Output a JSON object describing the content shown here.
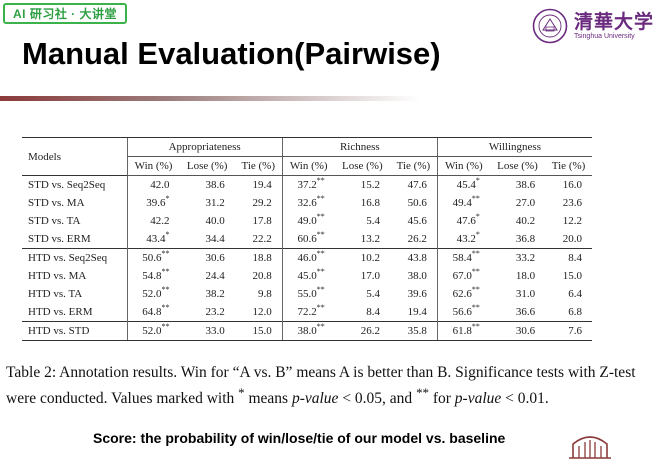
{
  "badge": "AI 研习社 · 大讲堂",
  "logo": {
    "cn": "清華大学",
    "en": "Tsinghua University"
  },
  "title": "Manual Evaluation(Pairwise)",
  "table": {
    "models_header": "Models",
    "groups": [
      "Appropriateness",
      "Richness",
      "Willingness"
    ],
    "subheaders": [
      "Win (%)",
      "Lose (%)",
      "Tie (%)"
    ],
    "blocks": [
      [
        {
          "model": "STD vs. Seq2Seq",
          "v": [
            "42.0",
            "38.6",
            "19.4",
            "37.2",
            "15.2",
            "47.6",
            "45.4",
            "38.6",
            "16.0"
          ],
          "s": [
            "",
            "",
            "",
            "**",
            "",
            "",
            "*",
            "",
            ""
          ]
        },
        {
          "model": "STD vs. MA",
          "v": [
            "39.6",
            "31.2",
            "29.2",
            "32.6",
            "16.8",
            "50.6",
            "49.4",
            "27.0",
            "23.6"
          ],
          "s": [
            "*",
            "",
            "",
            "**",
            "",
            "",
            "**",
            "",
            ""
          ]
        },
        {
          "model": "STD vs. TA",
          "v": [
            "42.2",
            "40.0",
            "17.8",
            "49.0",
            "5.4",
            "45.6",
            "47.6",
            "40.2",
            "12.2"
          ],
          "s": [
            "",
            "",
            "",
            "**",
            "",
            "",
            "*",
            "",
            ""
          ]
        },
        {
          "model": "STD vs. ERM",
          "v": [
            "43.4",
            "34.4",
            "22.2",
            "60.6",
            "13.2",
            "26.2",
            "43.2",
            "36.8",
            "20.0"
          ],
          "s": [
            "*",
            "",
            "",
            "**",
            "",
            "",
            "*",
            "",
            ""
          ]
        }
      ],
      [
        {
          "model": "HTD vs. Seq2Seq",
          "v": [
            "50.6",
            "30.6",
            "18.8",
            "46.0",
            "10.2",
            "43.8",
            "58.4",
            "33.2",
            "8.4"
          ],
          "s": [
            "**",
            "",
            "",
            "**",
            "",
            "",
            "**",
            "",
            ""
          ]
        },
        {
          "model": "HTD vs. MA",
          "v": [
            "54.8",
            "24.4",
            "20.8",
            "45.0",
            "17.0",
            "38.0",
            "67.0",
            "18.0",
            "15.0"
          ],
          "s": [
            "**",
            "",
            "",
            "**",
            "",
            "",
            "**",
            "",
            ""
          ]
        },
        {
          "model": "HTD vs. TA",
          "v": [
            "52.0",
            "38.2",
            "9.8",
            "55.0",
            "5.4",
            "39.6",
            "62.6",
            "31.0",
            "6.4"
          ],
          "s": [
            "**",
            "",
            "",
            "**",
            "",
            "",
            "**",
            "",
            ""
          ]
        },
        {
          "model": "HTD vs. ERM",
          "v": [
            "64.8",
            "23.2",
            "12.0",
            "72.2",
            "8.4",
            "19.4",
            "56.6",
            "36.6",
            "6.8"
          ],
          "s": [
            "**",
            "",
            "",
            "**",
            "",
            "",
            "**",
            "",
            ""
          ]
        }
      ],
      [
        {
          "model": "HTD vs. STD",
          "v": [
            "52.0",
            "33.0",
            "15.0",
            "38.0",
            "26.2",
            "35.8",
            "61.8",
            "30.6",
            "7.6"
          ],
          "s": [
            "**",
            "",
            "",
            "**",
            "",
            "",
            "**",
            "",
            ""
          ]
        }
      ]
    ]
  },
  "caption": {
    "p1": "Table 2: Annotation results. Win for “A vs. B” means A is better than B. Significance tests with Z-test were conducted. Values marked with ",
    "star1": "*",
    "p2": " means ",
    "pv": "p-value",
    "p3": " < 0.05, and ",
    "star2": "**",
    "p4": " for ",
    "p5": " < 0.01."
  },
  "note": "Score: the probability of win/lose/tie of our model vs. baseline",
  "icons": {
    "seal": "tsinghua-seal-icon",
    "corner": "building-logo-icon"
  },
  "colors": {
    "badge_green": "#3bb34a",
    "logo_purple": "#6a2a7e",
    "rule": "#8b3a3a"
  }
}
